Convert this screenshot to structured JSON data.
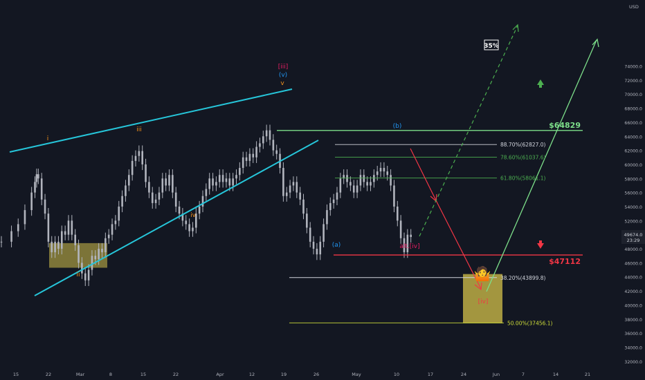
{
  "chart_data": {
    "type": "line",
    "title": "",
    "xlabel": "",
    "ylabel": "",
    "currency": "USD",
    "ylim": [
      31000,
      76000
    ],
    "y_ticks": [
      "32000.0",
      "34000.0",
      "36000.0",
      "38000.0",
      "40000.0",
      "42000.0",
      "44000.0",
      "46000.0",
      "48000.0",
      "50000.0",
      "52000.0",
      "54000.0",
      "56000.0",
      "58000.0",
      "60000.0",
      "62000.0",
      "64000.0",
      "66000.0",
      "68000.0",
      "70000.0",
      "72000.0",
      "74000.0"
    ],
    "x_ticks": [
      "15",
      "22",
      "Mar",
      "8",
      "15",
      "22",
      "Apr",
      "12",
      "19",
      "26",
      "May",
      "10",
      "17",
      "24",
      "Jun",
      "7",
      "14",
      "21"
    ],
    "last_price": {
      "value": "49674.0",
      "countdown": "23:29"
    },
    "price_series_approx": [
      [
        0,
        49000
      ],
      [
        3,
        50500
      ],
      [
        5,
        51500
      ],
      [
        7,
        53500
      ],
      [
        9,
        56000
      ],
      [
        10,
        57500
      ],
      [
        10.5,
        58600
      ],
      [
        11,
        58000
      ],
      [
        12,
        55000
      ],
      [
        13,
        53000
      ],
      [
        14,
        49000
      ],
      [
        15,
        47500
      ],
      [
        16,
        49000
      ],
      [
        17,
        48000
      ],
      [
        18,
        50500
      ],
      [
        19,
        50000
      ],
      [
        20,
        52000
      ],
      [
        21,
        50000
      ],
      [
        22,
        48500
      ],
      [
        23,
        46000
      ],
      [
        24,
        44500
      ],
      [
        25,
        43500
      ],
      [
        26,
        45000
      ],
      [
        27,
        47000
      ],
      [
        28,
        46500
      ],
      [
        29,
        48000
      ],
      [
        30,
        47500
      ],
      [
        31,
        49500
      ],
      [
        32,
        50000
      ],
      [
        33,
        51500
      ],
      [
        34,
        52000
      ],
      [
        35,
        54000
      ],
      [
        36,
        55500
      ],
      [
        37,
        57000
      ],
      [
        38,
        58500
      ],
      [
        39,
        60500
      ],
      [
        40,
        61200
      ],
      [
        41,
        61900
      ],
      [
        42,
        60000
      ],
      [
        43,
        57500
      ],
      [
        44,
        56000
      ],
      [
        45,
        54500
      ],
      [
        46,
        55000
      ],
      [
        47,
        56000
      ],
      [
        48,
        58000
      ],
      [
        49,
        57000
      ],
      [
        50,
        58500
      ],
      [
        51,
        56000
      ],
      [
        52,
        54000
      ],
      [
        53,
        53000
      ],
      [
        54,
        52000
      ],
      [
        55,
        51500
      ],
      [
        56,
        50500
      ],
      [
        57,
        51000
      ],
      [
        58,
        53000
      ],
      [
        59,
        54000
      ],
      [
        60,
        55500
      ],
      [
        61,
        56500
      ],
      [
        62,
        58000
      ],
      [
        63,
        57000
      ],
      [
        64,
        57500
      ],
      [
        65,
        58500
      ],
      [
        66,
        57500
      ],
      [
        67,
        58000
      ],
      [
        68,
        57000
      ],
      [
        69,
        58000
      ],
      [
        70,
        58500
      ],
      [
        71,
        59500
      ],
      [
        72,
        61000
      ],
      [
        73,
        60500
      ],
      [
        74,
        61500
      ],
      [
        75,
        61000
      ],
      [
        76,
        62500
      ],
      [
        77,
        63000
      ],
      [
        78,
        64000
      ],
      [
        79,
        64850
      ],
      [
        80,
        63500
      ],
      [
        81,
        62000
      ],
      [
        82,
        61500
      ],
      [
        83,
        59500
      ],
      [
        84,
        55500
      ],
      [
        85,
        56000
      ],
      [
        86,
        57000
      ],
      [
        87,
        57500
      ],
      [
        88,
        56000
      ],
      [
        89,
        55000
      ],
      [
        90,
        53000
      ],
      [
        91,
        51000
      ],
      [
        92,
        49000
      ],
      [
        93,
        48000
      ],
      [
        94,
        47200
      ],
      [
        95,
        49000
      ],
      [
        96,
        51500
      ],
      [
        97,
        53500
      ],
      [
        98,
        54500
      ],
      [
        99,
        55000
      ],
      [
        100,
        56000
      ],
      [
        101,
        58000
      ],
      [
        102,
        58500
      ],
      [
        103,
        57500
      ],
      [
        104,
        57000
      ],
      [
        105,
        56000
      ],
      [
        106,
        57000
      ],
      [
        107,
        58500
      ],
      [
        108,
        57500
      ],
      [
        109,
        57000
      ],
      [
        110,
        57500
      ],
      [
        111,
        58500
      ],
      [
        112,
        59000
      ],
      [
        113,
        59500
      ],
      [
        114,
        59000
      ],
      [
        115,
        58500
      ],
      [
        116,
        57000
      ],
      [
        117,
        54000
      ],
      [
        118,
        52000
      ],
      [
        119,
        49500
      ],
      [
        120,
        47500
      ],
      [
        121,
        50000
      ],
      [
        122,
        49674
      ]
    ],
    "horizontal_levels": [
      {
        "label": "$64829",
        "value": 64829,
        "color": "#7ddf8a"
      },
      {
        "label": "$47112",
        "value": 47112,
        "color": "#f23645"
      }
    ],
    "fibonacci_levels": [
      {
        "label": "88.70%(62827.0)",
        "value": 62827,
        "color": "#d1d4dc"
      },
      {
        "label": "78.60%(61037.6)",
        "value": 61037.6,
        "color": "#4caf50"
      },
      {
        "label": "61.80%(58061.1)",
        "value": 58061.1,
        "color": "#4caf50"
      },
      {
        "label": "38.20%(43899.8)",
        "value": 43899.8,
        "color": "#d1d4dc"
      },
      {
        "label": "50.00%(37456.1)",
        "value": 37456.1,
        "color": "#cddc39"
      }
    ],
    "wave_labels": [
      {
        "text": "i",
        "color": "#f7931a"
      },
      {
        "text": "ii",
        "color": "#f7931a"
      },
      {
        "text": "iii",
        "color": "#f7931a"
      },
      {
        "text": "iv",
        "color": "#f7931a"
      },
      {
        "text": "v",
        "color": "#f7931a"
      },
      {
        "text": "(v)",
        "color": "#2196f3"
      },
      {
        "text": "[iii]",
        "color": "#e91e63"
      },
      {
        "text": "(a)",
        "color": "#2196f3"
      },
      {
        "text": "(b)",
        "color": "#2196f3"
      },
      {
        "text": "alt.[iv]",
        "color": "#e91e63"
      },
      {
        "text": "[iv]",
        "color": "#f23645"
      }
    ],
    "annotations": {
      "percent_box": "35%",
      "emoji": "🤷"
    },
    "colors": {
      "background": "#131722",
      "price": "#b2b5be",
      "channel": "#26c6da",
      "bull_arrow": "#7ddf8a",
      "bear_arrow": "#f23645",
      "zone_fill": "#d4c14a"
    },
    "legend": "none",
    "grid": false
  }
}
